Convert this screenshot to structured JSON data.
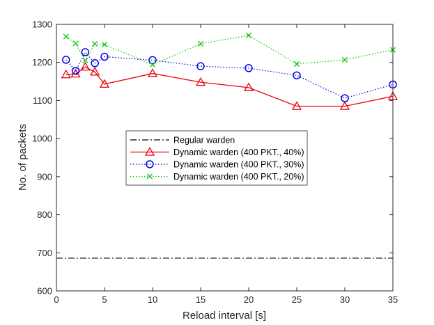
{
  "chart_data": {
    "type": "line",
    "xlabel": "Reload interval [s]",
    "ylabel": "No. of packets",
    "xlim": [
      0,
      35
    ],
    "ylim": [
      600,
      1300
    ],
    "xticks": [
      0,
      5,
      10,
      15,
      20,
      25,
      30,
      35
    ],
    "yticks": [
      600,
      700,
      800,
      900,
      1000,
      1100,
      1200,
      1300
    ],
    "legend_position": "center-left",
    "series": [
      {
        "name": "Regular warden",
        "color": "#000000",
        "line_style": "dashdot",
        "marker": "none",
        "x": [
          0,
          35
        ],
        "y": [
          686,
          686
        ]
      },
      {
        "name": "Dynamic warden (400 PKT., 40%)",
        "color": "#e8000b",
        "line_style": "solid",
        "marker": "triangle",
        "x": [
          1,
          2,
          3,
          4,
          5,
          10,
          15,
          20,
          25,
          30,
          35
        ],
        "y": [
          1168,
          1170,
          1188,
          1175,
          1143,
          1171,
          1148,
          1134,
          1085,
          1085,
          1111
        ]
      },
      {
        "name": "Dynamic warden (400 PKT., 30%)",
        "color": "#0000e8",
        "line_style": "dotted",
        "marker": "circle",
        "x": [
          1,
          2,
          3,
          4,
          5,
          10,
          15,
          20,
          25,
          30,
          35
        ],
        "y": [
          1207,
          1178,
          1227,
          1198,
          1215,
          1206,
          1190,
          1185,
          1166,
          1106,
          1142
        ]
      },
      {
        "name": "Dynamic warden (400 PKT., 20%)",
        "color": "#00c800",
        "line_style": "dotted",
        "marker": "x",
        "x": [
          1,
          2,
          3,
          4,
          5,
          10,
          15,
          20,
          25,
          30,
          35
        ],
        "y": [
          1268,
          1250,
          1205,
          1249,
          1247,
          1194,
          1249,
          1271,
          1196,
          1207,
          1233
        ]
      }
    ]
  }
}
